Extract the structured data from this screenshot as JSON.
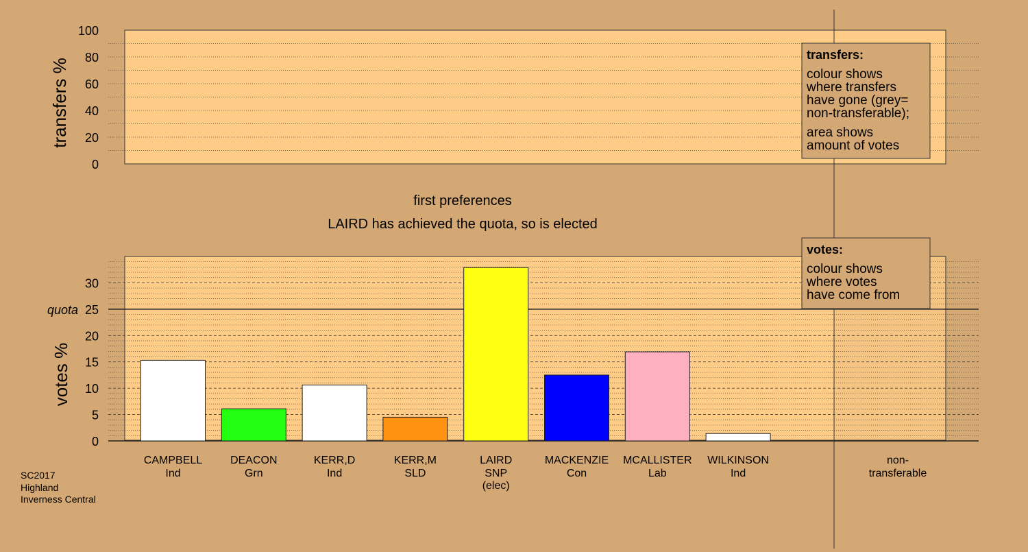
{
  "chart_data": {
    "type": "bar",
    "captions": [
      "first preferences",
      "LAIRD has achieved the quota, so is elected"
    ],
    "top_panel": {
      "ylabel": "transfers %",
      "ylim": [
        0,
        100
      ],
      "yticks": [
        "100",
        "80",
        "60",
        "40",
        "20",
        "0"
      ],
      "legend": {
        "title": "transfers:",
        "lines": [
          "colour shows",
          "where transfers",
          "have gone (grey=",
          "non-transferable);"
        ],
        "lines2": [
          "area shows",
          "amount of votes"
        ]
      }
    },
    "bottom_panel": {
      "ylabel": "votes %",
      "ylim": [
        0,
        35
      ],
      "yticks": [
        "30",
        "25",
        "20",
        "15",
        "10",
        "5",
        "0"
      ],
      "quota_label": "quota",
      "quota": 25,
      "legend": {
        "title": "votes:",
        "lines": [
          "colour shows",
          "where votes",
          "have come from"
        ]
      }
    },
    "candidates": [
      {
        "name": "CAMPBELL",
        "party": "Ind",
        "note": "",
        "value": 15.3,
        "color": "#ffffff"
      },
      {
        "name": "DEACON",
        "party": "Grn",
        "note": "",
        "value": 6.1,
        "color": "#22ff11"
      },
      {
        "name": "KERR,D",
        "party": "Ind",
        "note": "",
        "value": 10.6,
        "color": "#ffffff"
      },
      {
        "name": "KERR,M",
        "party": "SLD",
        "note": "",
        "value": 4.5,
        "color": "#ff9211"
      },
      {
        "name": "LAIRD",
        "party": "SNP",
        "note": "(elec)",
        "value": 32.9,
        "color": "#ffff11"
      },
      {
        "name": "MACKENZIE",
        "party": "Con",
        "note": "",
        "value": 12.5,
        "color": "#0000ff"
      },
      {
        "name": "MCALLISTER",
        "party": "Lab",
        "note": "",
        "value": 16.9,
        "color": "#ffb0c0"
      },
      {
        "name": "WILKINSON",
        "party": "Ind",
        "note": "",
        "value": 1.4,
        "color": "#ffffff"
      }
    ],
    "nontransferable_label": [
      "non-",
      "transferable"
    ]
  },
  "meta": {
    "election": "SC2017",
    "council": "Highland",
    "ward": "Inverness Central"
  },
  "colors": {
    "background": "#d4a874",
    "panel": "#ffcc88"
  }
}
